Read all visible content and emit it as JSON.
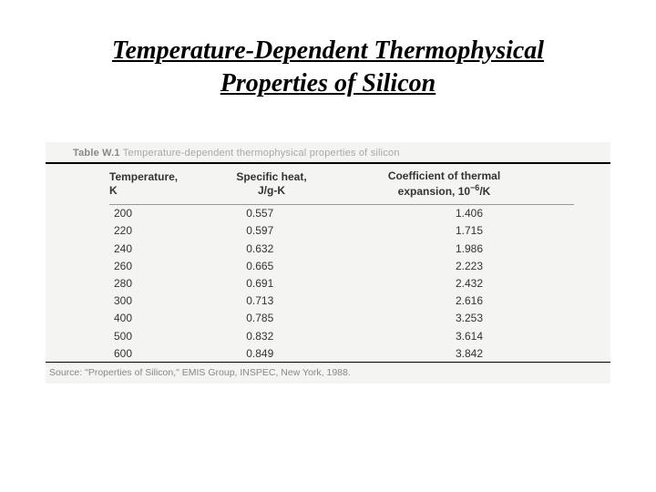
{
  "title": {
    "line1": "Temperature-Dependent Thermophysical",
    "line2": "Properties of Silicon"
  },
  "figure": {
    "caption_prefix": "Table W.1",
    "caption_text": "Temperature-dependent thermophysical properties of silicon",
    "source": "Source: \"Properties of Silicon,\" EMIS Group, INSPEC, New York, 1988.",
    "background_color": "#f4f4f2",
    "rule_color": "#000000"
  },
  "table": {
    "type": "table",
    "columns": [
      {
        "label_line1": "Temperature,",
        "label_line2": "K",
        "key": "temp",
        "align": "left",
        "width_pct": 25
      },
      {
        "label_line1": "Specific heat,",
        "label_line2": "J/g-K",
        "key": "heat",
        "align": "center",
        "width_pct": 30
      },
      {
        "label_line1": "Coefficient of thermal",
        "label_line2_prefix": "expansion, 10",
        "label_line2_exp": "−6",
        "label_line2_suffix": "/K",
        "key": "cte",
        "align": "right",
        "width_pct": 45
      }
    ],
    "header_fontsize": 12,
    "cell_fontsize": 12,
    "text_color": "#333333",
    "rows": [
      {
        "temp": "200",
        "heat": "0.557",
        "cte": "1.406"
      },
      {
        "temp": "220",
        "heat": "0.597",
        "cte": "1.715"
      },
      {
        "temp": "240",
        "heat": "0.632",
        "cte": "1.986"
      },
      {
        "temp": "260",
        "heat": "0.665",
        "cte": "2.223"
      },
      {
        "temp": "280",
        "heat": "0.691",
        "cte": "2.432"
      },
      {
        "temp": "300",
        "heat": "0.713",
        "cte": "2.616"
      },
      {
        "temp": "400",
        "heat": "0.785",
        "cte": "3.253"
      },
      {
        "temp": "500",
        "heat": "0.832",
        "cte": "3.614"
      },
      {
        "temp": "600",
        "heat": "0.849",
        "cte": "3.842"
      }
    ]
  }
}
